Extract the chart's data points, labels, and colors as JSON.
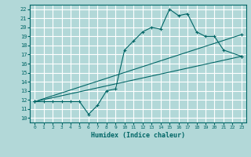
{
  "title": "",
  "xlabel": "Humidex (Indice chaleur)",
  "xlim": [
    -0.5,
    23.5
  ],
  "ylim": [
    9.5,
    22.5
  ],
  "xticks": [
    0,
    1,
    2,
    3,
    4,
    5,
    6,
    7,
    8,
    9,
    10,
    11,
    12,
    13,
    14,
    15,
    16,
    17,
    18,
    19,
    20,
    21,
    22,
    23
  ],
  "yticks": [
    10,
    11,
    12,
    13,
    14,
    15,
    16,
    17,
    18,
    19,
    20,
    21,
    22
  ],
  "background_color": "#b2d8d8",
  "grid_color": "#ffffff",
  "line_color": "#006666",
  "lines": [
    {
      "x": [
        0,
        1,
        2,
        3,
        4,
        5,
        6,
        7,
        8,
        9,
        10,
        11,
        12,
        13,
        14,
        15,
        16,
        17,
        18,
        19,
        20,
        21,
        23
      ],
      "y": [
        11.8,
        11.8,
        11.8,
        11.8,
        11.8,
        11.8,
        10.4,
        11.4,
        13.0,
        13.2,
        17.5,
        18.5,
        19.5,
        20.0,
        19.8,
        22.0,
        21.3,
        21.5,
        19.5,
        19.0,
        19.0,
        17.5,
        16.8
      ]
    },
    {
      "x": [
        0,
        23
      ],
      "y": [
        11.8,
        16.8
      ]
    },
    {
      "x": [
        0,
        23
      ],
      "y": [
        11.8,
        19.2
      ]
    }
  ]
}
